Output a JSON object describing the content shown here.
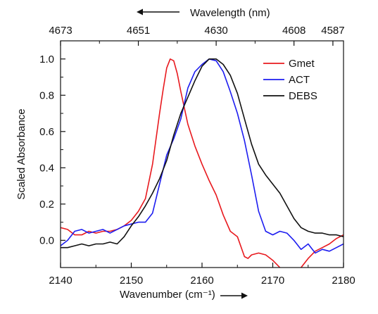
{
  "chart_data": {
    "type": "line",
    "title": "",
    "xlabel": "Wavenumber (cm⁻¹)",
    "ylabel": "Scaled Absorbance",
    "top_axis_label": "Wavelength (nm)",
    "xlim": [
      2140,
      2180
    ],
    "ylim": [
      -0.15,
      1.1
    ],
    "x_ticks": [
      2140,
      2150,
      2160,
      2170,
      2180
    ],
    "x_tick_labels": [
      "2140",
      "2150",
      "2160",
      "2170",
      "2180"
    ],
    "y_ticks": [
      0.0,
      0.2,
      0.4,
      0.6,
      0.8,
      1.0
    ],
    "y_tick_labels": [
      "0.0",
      "0.2",
      "0.4",
      "0.6",
      "0.8",
      "1.0"
    ],
    "top_ticks": [
      2140,
      2145.5,
      2151,
      2156.5,
      2162,
      2167.5,
      2173,
      2178.5
    ],
    "top_tick_labels": [
      "4673",
      "4651",
      "4630",
      "4608",
      "4587"
    ],
    "top_major_ticks": [
      2140,
      2151,
      2162,
      2173,
      2178.5
    ],
    "grid": false,
    "legend_position": "top-right",
    "series": [
      {
        "name": "Gmet",
        "color": "#e8191e",
        "x": [
          2140,
          2141,
          2142,
          2143,
          2144,
          2145,
          2146,
          2147,
          2148,
          2149,
          2150,
          2151,
          2152,
          2153,
          2154,
          2154.5,
          2155,
          2155.5,
          2156,
          2156.5,
          2157,
          2158,
          2159,
          2160,
          2161,
          2162,
          2163,
          2164,
          2165,
          2166,
          2166.5,
          2167,
          2168,
          2169,
          2170,
          2171,
          2172,
          2173,
          2174,
          2175,
          2176,
          2177,
          2178,
          2179,
          2180
        ],
        "y": [
          0.07,
          0.06,
          0.03,
          0.03,
          0.05,
          0.04,
          0.05,
          0.05,
          0.06,
          0.08,
          0.11,
          0.16,
          0.23,
          0.42,
          0.7,
          0.83,
          0.95,
          1.0,
          0.99,
          0.92,
          0.82,
          0.64,
          0.52,
          0.42,
          0.33,
          0.25,
          0.14,
          0.05,
          0.02,
          -0.09,
          -0.1,
          -0.08,
          -0.07,
          -0.08,
          -0.11,
          -0.15,
          -0.2,
          -0.2,
          -0.15,
          -0.1,
          -0.06,
          -0.04,
          -0.02,
          0.01,
          0.03
        ]
      },
      {
        "name": "ACT",
        "color": "#1d1df0",
        "x": [
          2140,
          2141,
          2142,
          2143,
          2144,
          2145,
          2146,
          2147,
          2148,
          2149,
          2150,
          2151,
          2152,
          2153,
          2154,
          2155,
          2156,
          2157,
          2158,
          2159,
          2160,
          2161,
          2162,
          2163,
          2164,
          2165,
          2166,
          2167,
          2168,
          2169,
          2170,
          2171,
          2172,
          2173,
          2174,
          2175,
          2176,
          2177,
          2178,
          2179,
          2180
        ],
        "y": [
          -0.03,
          0.0,
          0.05,
          0.06,
          0.04,
          0.05,
          0.06,
          0.04,
          0.06,
          0.08,
          0.09,
          0.1,
          0.1,
          0.15,
          0.31,
          0.47,
          0.56,
          0.67,
          0.84,
          0.93,
          0.97,
          1.0,
          0.99,
          0.93,
          0.82,
          0.7,
          0.55,
          0.36,
          0.16,
          0.05,
          0.03,
          0.05,
          0.04,
          0.0,
          -0.05,
          -0.02,
          -0.07,
          -0.05,
          -0.06,
          -0.04,
          -0.02
        ]
      },
      {
        "name": "DEBS",
        "color": "#111111",
        "x": [
          2140,
          2141,
          2142,
          2143,
          2144,
          2145,
          2146,
          2147,
          2148,
          2149,
          2150,
          2151,
          2152,
          2153,
          2154,
          2155,
          2156,
          2157,
          2158,
          2159,
          2160,
          2161,
          2162,
          2163,
          2164,
          2165,
          2166,
          2167,
          2168,
          2169,
          2170,
          2171,
          2172,
          2173,
          2174,
          2175,
          2176,
          2177,
          2178,
          2179,
          2180
        ],
        "y": [
          -0.04,
          -0.04,
          -0.03,
          -0.02,
          -0.03,
          -0.02,
          -0.02,
          -0.01,
          -0.02,
          0.02,
          0.08,
          0.13,
          0.19,
          0.26,
          0.34,
          0.44,
          0.58,
          0.7,
          0.79,
          0.88,
          0.96,
          1.0,
          1.0,
          0.97,
          0.91,
          0.81,
          0.67,
          0.53,
          0.42,
          0.36,
          0.31,
          0.26,
          0.19,
          0.12,
          0.07,
          0.05,
          0.04,
          0.04,
          0.03,
          0.03,
          0.02
        ]
      }
    ]
  }
}
